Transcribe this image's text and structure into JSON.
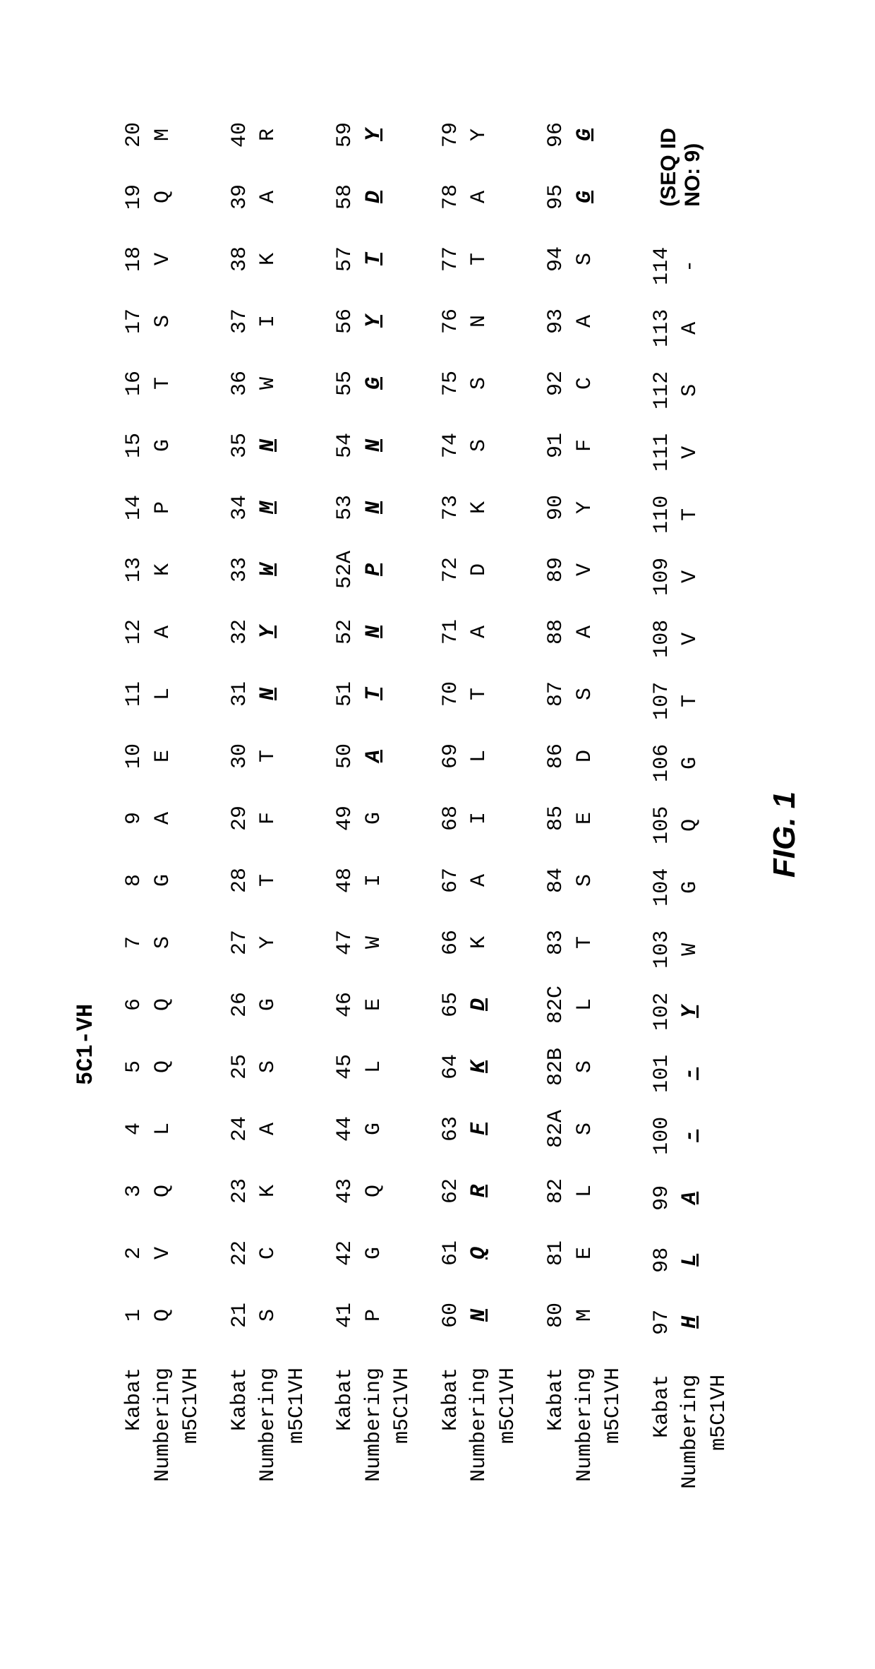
{
  "title": "5C1-VH",
  "fig_label": "FIG. 1",
  "seqid_text": "(SEQ ID NO: 9)",
  "labels": {
    "line1": "Kabat",
    "line2": "Numbering",
    "line3": "m5C1VH"
  },
  "blocks": [
    {
      "positions": [
        "1",
        "2",
        "3",
        "4",
        "5",
        "6",
        "7",
        "8",
        "9",
        "10",
        "11",
        "12",
        "13",
        "14",
        "15",
        "16",
        "17",
        "18",
        "19",
        "20"
      ],
      "residues": [
        "Q",
        "V",
        "Q",
        "L",
        "Q",
        "Q",
        "S",
        "G",
        "A",
        "E",
        "L",
        "A",
        "K",
        "P",
        "G",
        "T",
        "S",
        "V",
        "Q",
        "M"
      ],
      "cdr": []
    },
    {
      "positions": [
        "21",
        "22",
        "23",
        "24",
        "25",
        "26",
        "27",
        "28",
        "29",
        "30",
        "31",
        "32",
        "33",
        "34",
        "35",
        "36",
        "37",
        "38",
        "39",
        "40"
      ],
      "residues": [
        "S",
        "C",
        "K",
        "A",
        "S",
        "G",
        "Y",
        "T",
        "F",
        "T",
        "N",
        "Y",
        "W",
        "M",
        "N",
        "W",
        "I",
        "K",
        "A",
        "R"
      ],
      "cdr": [
        10,
        11,
        12,
        13,
        14
      ]
    },
    {
      "positions": [
        "41",
        "42",
        "43",
        "44",
        "45",
        "46",
        "47",
        "48",
        "49",
        "50",
        "51",
        "52",
        "52A",
        "53",
        "54",
        "55",
        "56",
        "57",
        "58",
        "59"
      ],
      "residues": [
        "P",
        "G",
        "Q",
        "G",
        "L",
        "E",
        "W",
        "I",
        "G",
        "A",
        "T",
        "N",
        "P",
        "N",
        "N",
        "G",
        "Y",
        "T",
        "D",
        "Y"
      ],
      "cdr": [
        9,
        10,
        11,
        12,
        13,
        14,
        15,
        16,
        17,
        18,
        19
      ]
    },
    {
      "positions": [
        "60",
        "61",
        "62",
        "63",
        "64",
        "65",
        "66",
        "67",
        "68",
        "69",
        "70",
        "71",
        "72",
        "73",
        "74",
        "75",
        "76",
        "77",
        "78",
        "79"
      ],
      "residues": [
        "N",
        "Q",
        "R",
        "F",
        "K",
        "D",
        "K",
        "A",
        "I",
        "L",
        "T",
        "A",
        "D",
        "K",
        "S",
        "S",
        "N",
        "T",
        "A",
        "Y"
      ],
      "cdr": [
        0,
        1,
        2,
        3,
        4,
        5
      ]
    },
    {
      "positions": [
        "80",
        "81",
        "82",
        "82A",
        "82B",
        "82C",
        "83",
        "84",
        "85",
        "86",
        "87",
        "88",
        "89",
        "90",
        "91",
        "92",
        "93",
        "94",
        "95",
        "96"
      ],
      "residues": [
        "M",
        "E",
        "L",
        "S",
        "S",
        "L",
        "T",
        "S",
        "E",
        "D",
        "S",
        "A",
        "V",
        "Y",
        "F",
        "C",
        "A",
        "S",
        "G",
        "G"
      ],
      "cdr": [
        18,
        19
      ]
    },
    {
      "positions": [
        "97",
        "98",
        "99",
        "100",
        "101",
        "102",
        "103",
        "104",
        "105",
        "106",
        "107",
        "108",
        "109",
        "110",
        "111",
        "112",
        "113",
        "114"
      ],
      "residues": [
        "H",
        "L",
        "A",
        "-",
        "-",
        "Y",
        "W",
        "G",
        "Q",
        "G",
        "T",
        "V",
        "V",
        "T",
        "V",
        "S",
        "A",
        "-"
      ],
      "cdr": [
        0,
        1,
        2,
        3,
        4,
        5
      ]
    }
  ]
}
